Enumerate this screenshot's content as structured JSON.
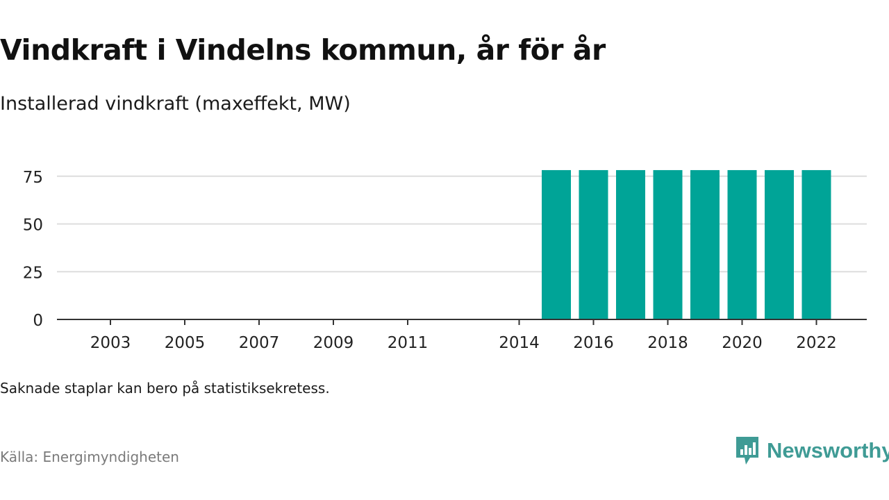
{
  "title": "Vindkraft i Vindelns kommun, år för år",
  "subtitle": "Installerad vindkraft (maxeffekt, MW)",
  "note": "Saknade staplar kan bero på statistiksekretess.",
  "source": "Källa: Energimyndigheten",
  "brand": {
    "name": "Newsworthy",
    "icon": "newsworthy-logo-icon",
    "color": "#3f9b95"
  },
  "chart_data": {
    "type": "bar",
    "categories": [
      "2003",
      "2004",
      "2005",
      "2006",
      "2007",
      "2008",
      "2009",
      "2010",
      "2011",
      "2012",
      "2013",
      "2014",
      "2015",
      "2016",
      "2017",
      "2018",
      "2019",
      "2020",
      "2021",
      "2022"
    ],
    "values": [
      0,
      0,
      0,
      0,
      0,
      0,
      0,
      0,
      0,
      null,
      null,
      0,
      78.2,
      78.2,
      78.2,
      78.2,
      78.2,
      78.2,
      78.2,
      78.2
    ],
    "xticks": [
      "2003",
      "2005",
      "2007",
      "2009",
      "2011",
      "2014",
      "2016",
      "2018",
      "2020",
      "2022"
    ],
    "yticks": [
      0,
      25,
      50,
      75
    ],
    "ylim": [
      0,
      80
    ],
    "xlabel": "",
    "ylabel": "",
    "bar_color": "#00a497",
    "grid": true
  }
}
